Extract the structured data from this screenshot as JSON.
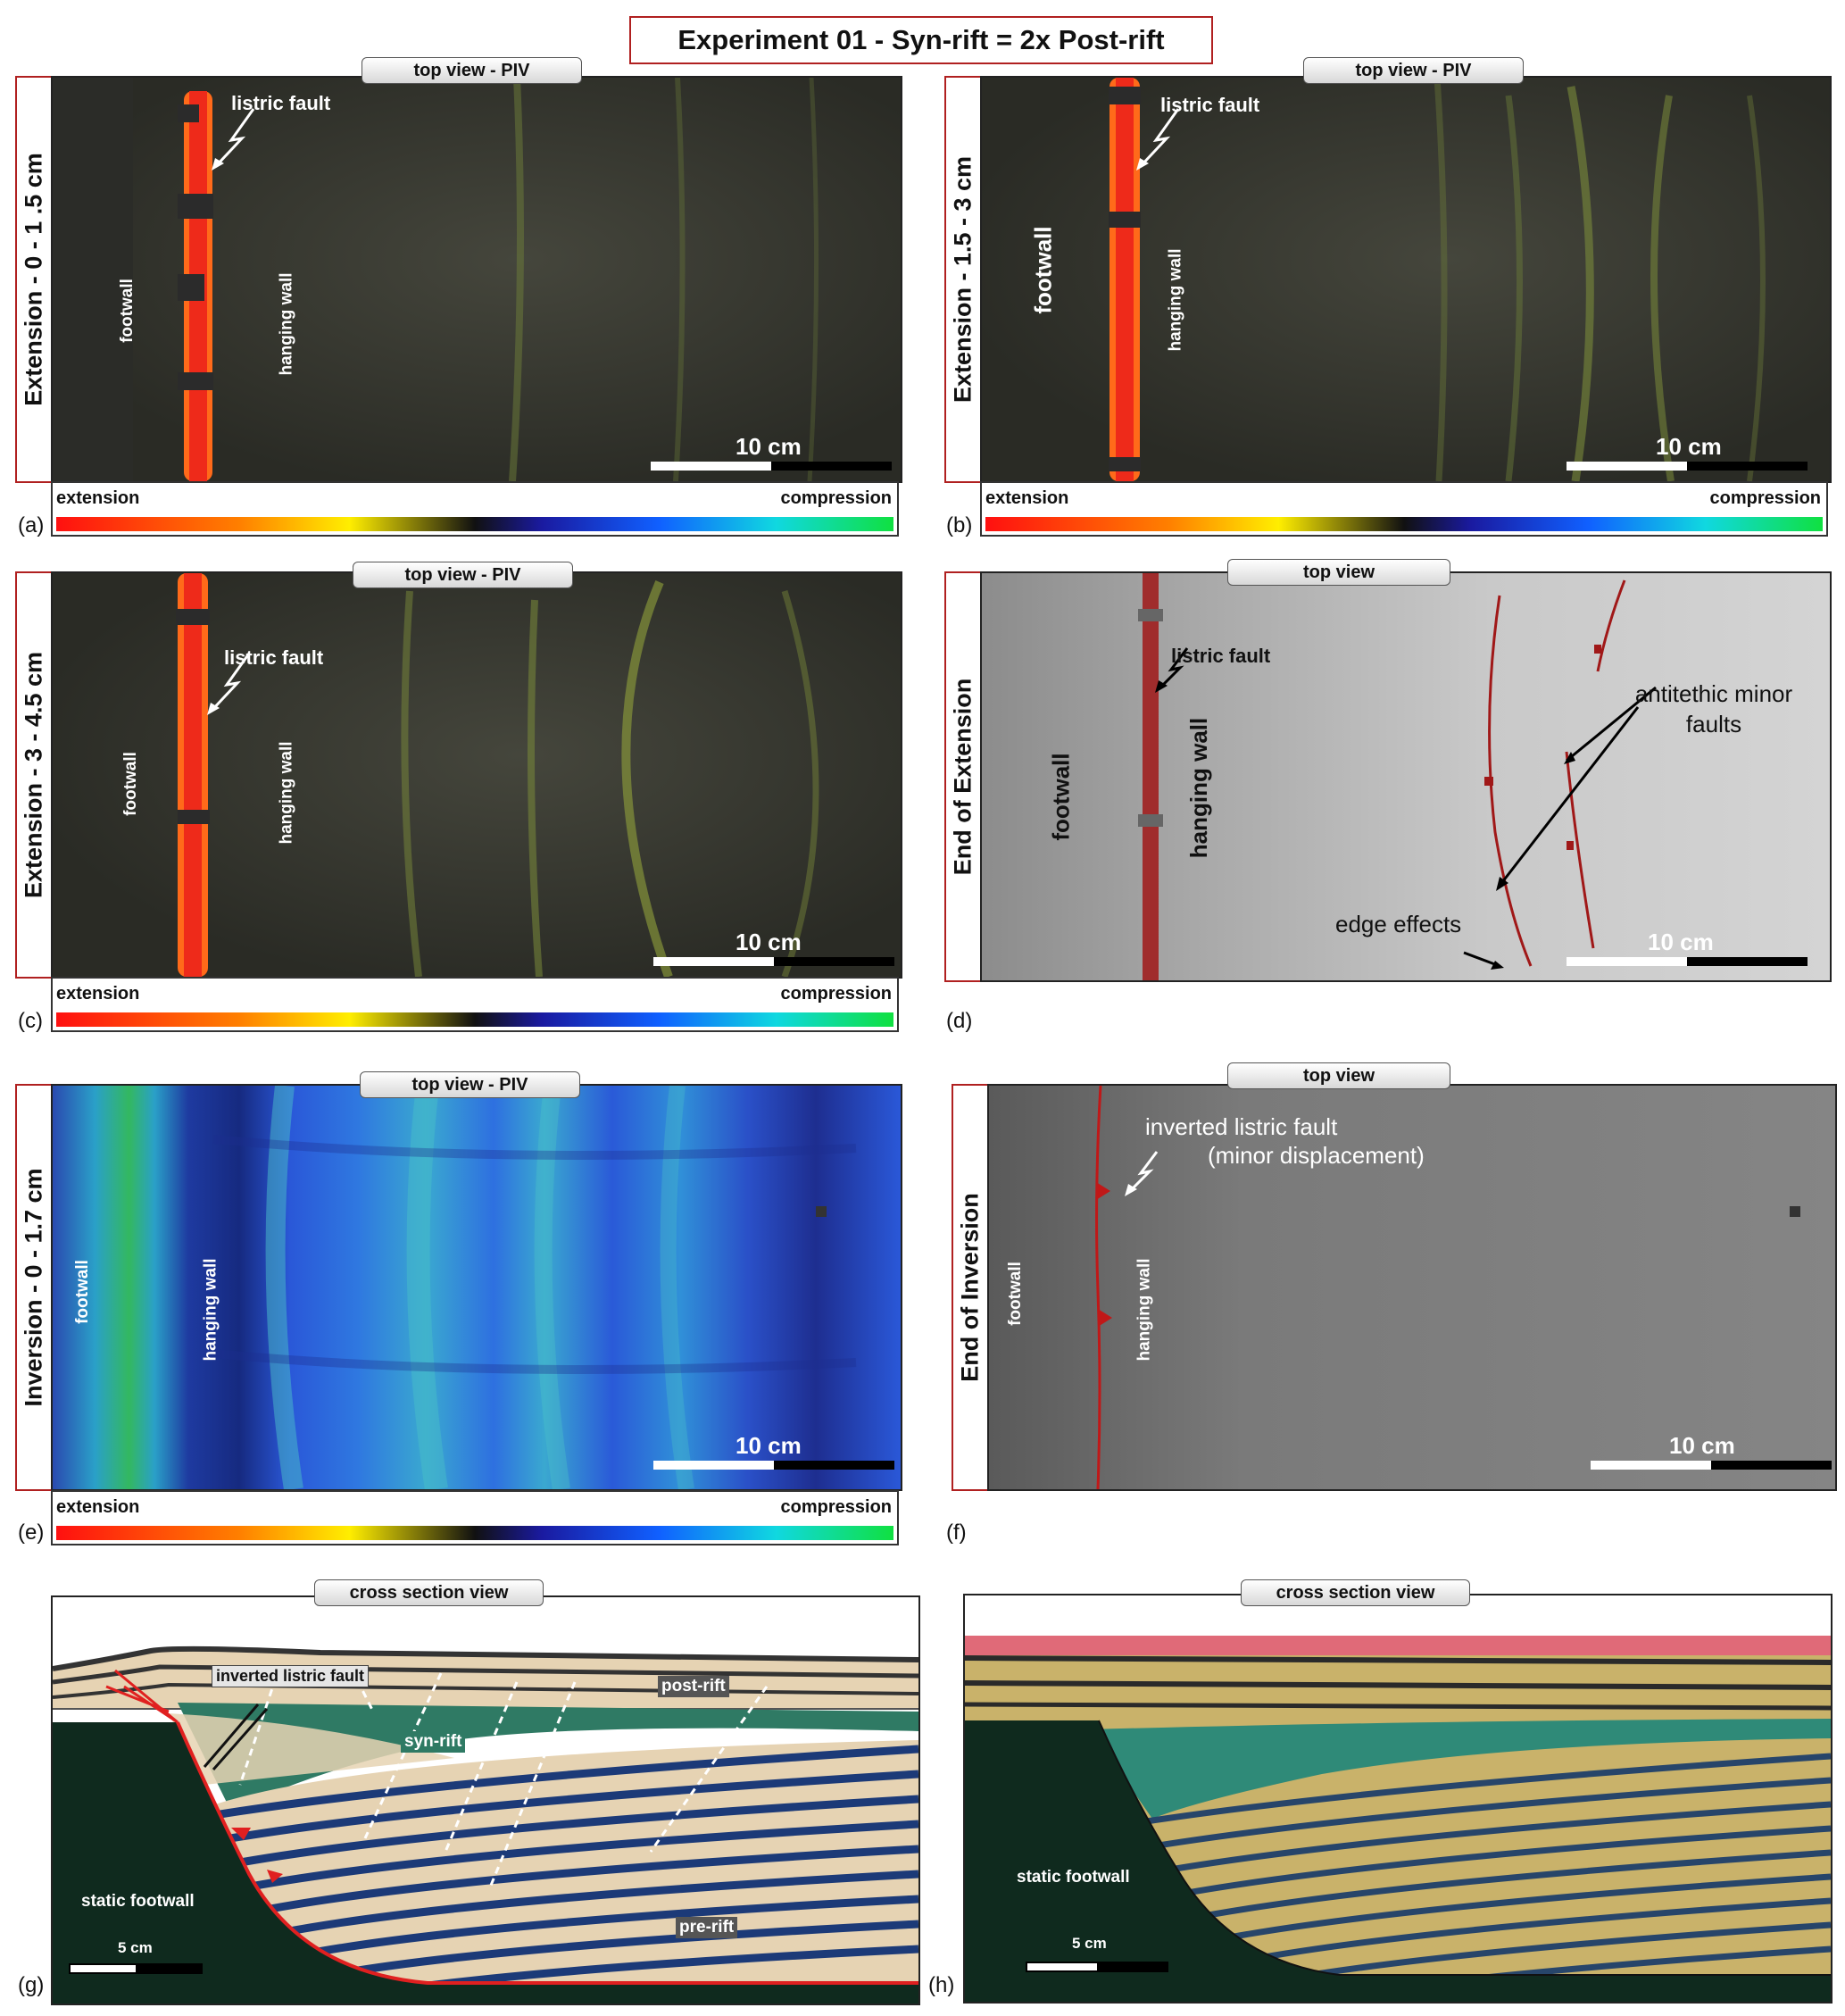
{
  "title": "Experiment 01 - Syn-rift = 2x Post-rift",
  "colorbar": {
    "left": "extension",
    "right": "compression"
  },
  "scale": {
    "ten_cm": "10 cm",
    "five_cm": "5 cm"
  },
  "panels": {
    "a": {
      "letter": "(a)",
      "side": "Extension - 0 - 1 .5 cm",
      "tab": "top view - PIV",
      "fault": "listric fault",
      "footwall": "footwall",
      "hanging": "hanging wall"
    },
    "b": {
      "letter": "(b)",
      "side": "Extension - 1.5 - 3 cm",
      "tab": "top view - PIV",
      "fault": "listric fault",
      "footwall": "footwall",
      "hanging": "hanging wall"
    },
    "c": {
      "letter": "(c)",
      "side": "Extension - 3 - 4.5 cm",
      "tab": "top view - PIV",
      "fault": "listric fault",
      "footwall": "footwall",
      "hanging": "hanging wall"
    },
    "d": {
      "letter": "(d)",
      "side": "End of Extension",
      "tab": "top view",
      "fault": "listric fault",
      "footwall": "footwall",
      "hanging": "hanging wall",
      "antithetic_line1": "antitethic minor",
      "antithetic_line2": "faults",
      "edge": "edge effects"
    },
    "e": {
      "letter": "(e)",
      "side": "Inversion - 0 - 1.7 cm",
      "tab": "top view - PIV",
      "footwall": "footwall",
      "hanging": "hanging wall"
    },
    "f": {
      "letter": "(f)",
      "side": "End of Inversion",
      "tab": "top view",
      "fault_line1": "inverted listric fault",
      "fault_line2": "(minor displacement)",
      "footwall": "footwall",
      "hanging": "hanging wall"
    },
    "g": {
      "letter": "(g)",
      "tab": "cross section view",
      "fault": "inverted listric fault",
      "post": "post-rift",
      "syn": "syn-rift",
      "pre": "pre-rift",
      "footwall": "static footwall"
    },
    "h": {
      "letter": "(h)",
      "tab": "cross section view",
      "footwall": "static footwall"
    }
  },
  "colors": {
    "frame_red": "#b02020",
    "fault_red": "#e02020",
    "footwall_green": "#0f2a1e",
    "syn_rift_teal": "#2f7a64",
    "pre_rift_blue": "#1c3a78",
    "sand": "#e6d3b3"
  }
}
